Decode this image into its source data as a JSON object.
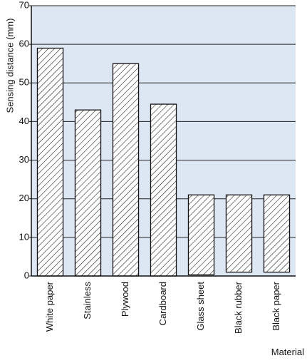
{
  "chart_data": {
    "type": "bar",
    "y_label": "Sensing distance (mm)",
    "x_label": "Material",
    "categories": [
      "White paper",
      "Stainless",
      "Plywood",
      "Cardboard",
      "Glass sheet",
      "Black rubber",
      "Black paper"
    ],
    "values": [
      59,
      43,
      55,
      44.5,
      21,
      21,
      21
    ],
    "bases": [
      0,
      0,
      0,
      0,
      0.3,
      1,
      1
    ],
    "color": "#ffffff",
    "background": "#dde6f3",
    "ylim": [
      0,
      70
    ],
    "yticks": [
      0,
      10,
      20,
      30,
      40,
      50,
      60,
      70
    ],
    "grid": true
  }
}
